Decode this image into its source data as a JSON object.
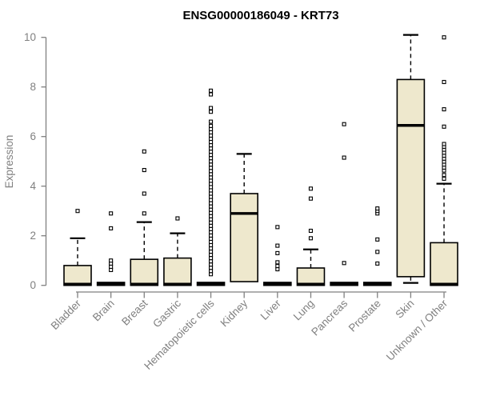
{
  "chart_data": {
    "type": "boxplot",
    "title": "ENSG00000186049 - KRT73",
    "xlabel": "",
    "ylabel": "Expression",
    "ylim": [
      0,
      10
    ],
    "yticks": [
      0,
      2,
      4,
      6,
      8,
      10
    ],
    "grid": false,
    "legend": "none",
    "colors": {
      "box_fill": "#EEE8CD",
      "box_stroke": "#000000",
      "median": "#000000",
      "whisker": "#000000",
      "outlier": "#000000",
      "axis": "#808080",
      "tick_label": "#808080",
      "title": "#000000",
      "background": "#FFFFFF"
    },
    "categories": [
      "Bladder",
      "Brain",
      "Breast",
      "Gastric",
      "Hematopoietic cells",
      "Kidney",
      "Liver",
      "Lung",
      "Pancreas",
      "Prostate",
      "Skin",
      "Unknown / Other"
    ],
    "boxes": [
      {
        "label": "Bladder",
        "whisker_low": 0,
        "q1": 0,
        "median": 0.05,
        "q3": 0.8,
        "whisker_high": 1.9,
        "outliers": [
          3.0
        ]
      },
      {
        "label": "Brain",
        "whisker_low": 0,
        "q1": 0,
        "median": 0.05,
        "q3": 0.12,
        "whisker_high": 0.12,
        "outliers": [
          0.62,
          0.75,
          0.88,
          1.0,
          2.3,
          2.9
        ]
      },
      {
        "label": "Breast",
        "whisker_low": 0,
        "q1": 0,
        "median": 0.05,
        "q3": 1.05,
        "whisker_high": 2.55,
        "outliers": [
          2.9,
          3.7,
          4.65,
          5.4
        ]
      },
      {
        "label": "Gastric",
        "whisker_low": 0,
        "q1": 0,
        "median": 0.05,
        "q3": 1.1,
        "whisker_high": 2.1,
        "outliers": [
          2.7
        ]
      },
      {
        "label": "Hematopoietic cells",
        "whisker_low": 0,
        "q1": 0,
        "median": 0.05,
        "q3": 0.12,
        "whisker_high": 0.12,
        "outliers": [
          0.45,
          0.58,
          0.71,
          0.84,
          0.97,
          1.1,
          1.23,
          1.36,
          1.49,
          1.62,
          1.75,
          1.88,
          2.01,
          2.14,
          2.27,
          2.4,
          2.53,
          2.66,
          2.79,
          2.92,
          3.05,
          3.18,
          3.31,
          3.44,
          3.57,
          3.7,
          3.83,
          3.96,
          4.09,
          4.22,
          4.35,
          4.48,
          4.61,
          4.74,
          4.87,
          5.0,
          5.13,
          5.26,
          5.39,
          5.52,
          5.65,
          5.78,
          5.91,
          6.04,
          6.17,
          6.3,
          6.43,
          6.6,
          7.0,
          7.15,
          7.7,
          7.85
        ]
      },
      {
        "label": "Kidney",
        "whisker_low": 0.15,
        "q1": 0.15,
        "median": 2.9,
        "q3": 3.7,
        "whisker_high": 5.3,
        "outliers": []
      },
      {
        "label": "Liver",
        "whisker_low": 0,
        "q1": 0,
        "median": 0.05,
        "q3": 0.12,
        "whisker_high": 0.12,
        "outliers": [
          0.65,
          0.78,
          0.93,
          1.3,
          1.6,
          2.35
        ]
      },
      {
        "label": "Lung",
        "whisker_low": 0,
        "q1": 0,
        "median": 0.05,
        "q3": 0.7,
        "whisker_high": 1.45,
        "outliers": [
          1.9,
          2.2,
          3.5,
          3.9
        ]
      },
      {
        "label": "Pancreas",
        "whisker_low": 0,
        "q1": 0,
        "median": 0.05,
        "q3": 0.12,
        "whisker_high": 0.12,
        "outliers": [
          0.9,
          5.15,
          6.5
        ]
      },
      {
        "label": "Prostate",
        "whisker_low": 0,
        "q1": 0,
        "median": 0.05,
        "q3": 0.12,
        "whisker_high": 0.12,
        "outliers": [
          0.88,
          1.35,
          1.85,
          2.9,
          3.0,
          3.1
        ]
      },
      {
        "label": "Skin",
        "whisker_low": 0.1,
        "q1": 0.35,
        "median": 6.45,
        "q3": 8.3,
        "whisker_high": 10.1,
        "outliers": []
      },
      {
        "label": "Unknown / Other",
        "whisker_low": 0,
        "q1": 0,
        "median": 0.05,
        "q3": 1.72,
        "whisker_high": 4.1,
        "outliers": [
          4.3,
          4.45,
          4.63,
          4.75,
          4.87,
          4.99,
          5.11,
          5.23,
          5.35,
          5.47,
          5.59,
          5.7,
          6.4,
          7.1,
          8.2,
          10.0
        ]
      }
    ]
  }
}
